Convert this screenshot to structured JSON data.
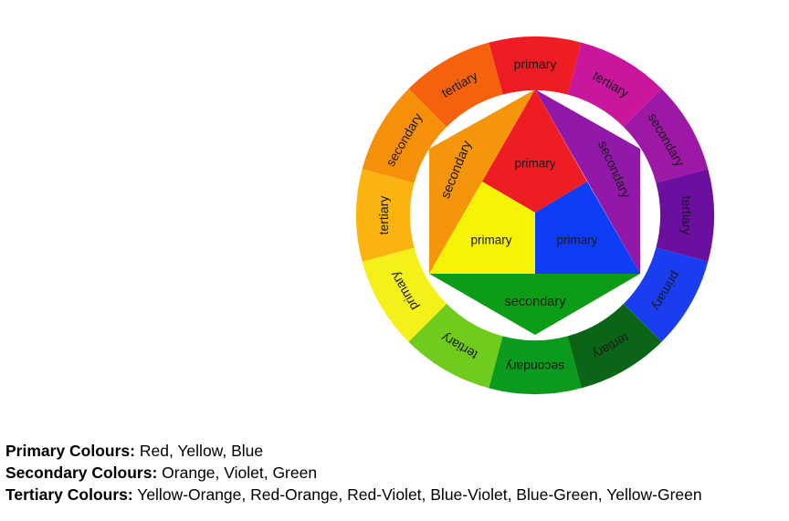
{
  "wheel": {
    "ring": [
      {
        "label": "primary",
        "color": "#ee1d24"
      },
      {
        "label": "tertiary",
        "color": "#c8169d"
      },
      {
        "label": "secondary",
        "color": "#9c18a5"
      },
      {
        "label": "tertiary",
        "color": "#6a0fa0"
      },
      {
        "label": "primary",
        "color": "#1b3df0"
      },
      {
        "label": "tertiary",
        "color": "#0a6516"
      },
      {
        "label": "secondary",
        "color": "#0c9a1e"
      },
      {
        "label": "tertiary",
        "color": "#6fcb1c"
      },
      {
        "label": "primary",
        "color": "#f4f01a"
      },
      {
        "label": "tertiary",
        "color": "#fbb40f"
      },
      {
        "label": "secondary",
        "color": "#f6900b"
      },
      {
        "label": "tertiary",
        "color": "#f4620e"
      }
    ],
    "inner": {
      "top": {
        "label": "primary",
        "color": "#ee1d24"
      },
      "left": {
        "label": "primary",
        "color": "#f7f306"
      },
      "right": {
        "label": "primary",
        "color": "#0f3cf5"
      },
      "upper_left": {
        "label": "secondary",
        "color": "#f4950c"
      },
      "upper_right": {
        "label": "secondary",
        "color": "#9218a9"
      },
      "bottom": {
        "label": "secondary",
        "color": "#0d9c15"
      }
    }
  },
  "legend": [
    {
      "term": "Primary Colours:",
      "items": "Red, Yellow, Blue"
    },
    {
      "term": "Secondary Colours:",
      "items": "Orange, Violet, Green"
    },
    {
      "term": "Tertiary Colours:",
      "items": "Yellow-Orange, Red-Orange, Red-Violet, Blue-Violet, Blue-Green, Yellow-Green"
    }
  ]
}
